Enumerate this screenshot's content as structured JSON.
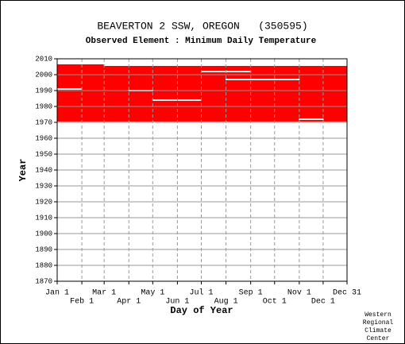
{
  "chart_data": {
    "type": "availability",
    "title": "BEAVERTON 2 SSW, OREGON   (350595)",
    "subtitle": "Observed Element : Minimum Daily Temperature",
    "x_label": "Day of Year",
    "y_label": "Year",
    "footer": [
      "Western",
      "Regional",
      "Climate",
      "Center"
    ],
    "xlim": [
      1,
      365
    ],
    "ylim": [
      1870,
      2010
    ],
    "xticks": [
      {
        "value": 1,
        "label": "Jan 1"
      },
      {
        "value": 32,
        "label": "Feb 1"
      },
      {
        "value": 60,
        "label": "Mar 1"
      },
      {
        "value": 91,
        "label": "Apr 1"
      },
      {
        "value": 121,
        "label": "May 1"
      },
      {
        "value": 152,
        "label": "Jun 1"
      },
      {
        "value": 182,
        "label": "Jul 1"
      },
      {
        "value": 213,
        "label": "Aug 1"
      },
      {
        "value": 244,
        "label": "Sep 1"
      },
      {
        "value": 274,
        "label": "Oct 1"
      },
      {
        "value": 305,
        "label": "Nov 1"
      },
      {
        "value": 335,
        "label": "Dec 1"
      },
      {
        "value": 365,
        "label": "Dec 31"
      }
    ],
    "yticks": [
      1870,
      1880,
      1890,
      1900,
      1910,
      1920,
      1930,
      1940,
      1950,
      1960,
      1970,
      1980,
      1990,
      2000,
      2010
    ],
    "series": [
      {
        "name": "present",
        "color": "#ff0000",
        "ranges": [
          {
            "days": [
              1,
              59
            ],
            "years": [
              2006,
              2006
            ]
          },
          {
            "days": [
              1,
              365
            ],
            "years": [
              1971,
              2005
            ]
          }
        ]
      },
      {
        "name": "missing",
        "color": "#ffffff",
        "ranges": [
          {
            "days": [
              1,
              31
            ],
            "years": [
              1991,
              1991
            ]
          },
          {
            "days": [
              91,
              121
            ],
            "years": [
              1990,
              1990
            ]
          },
          {
            "days": [
              121,
              181
            ],
            "years": [
              1984,
              1984
            ]
          },
          {
            "days": [
              182,
              244
            ],
            "years": [
              2002,
              2002
            ]
          },
          {
            "days": [
              213,
              305
            ],
            "years": [
              1997,
              1997
            ]
          },
          {
            "days": [
              305,
              335
            ],
            "years": [
              1972,
              1972
            ]
          }
        ]
      }
    ]
  }
}
